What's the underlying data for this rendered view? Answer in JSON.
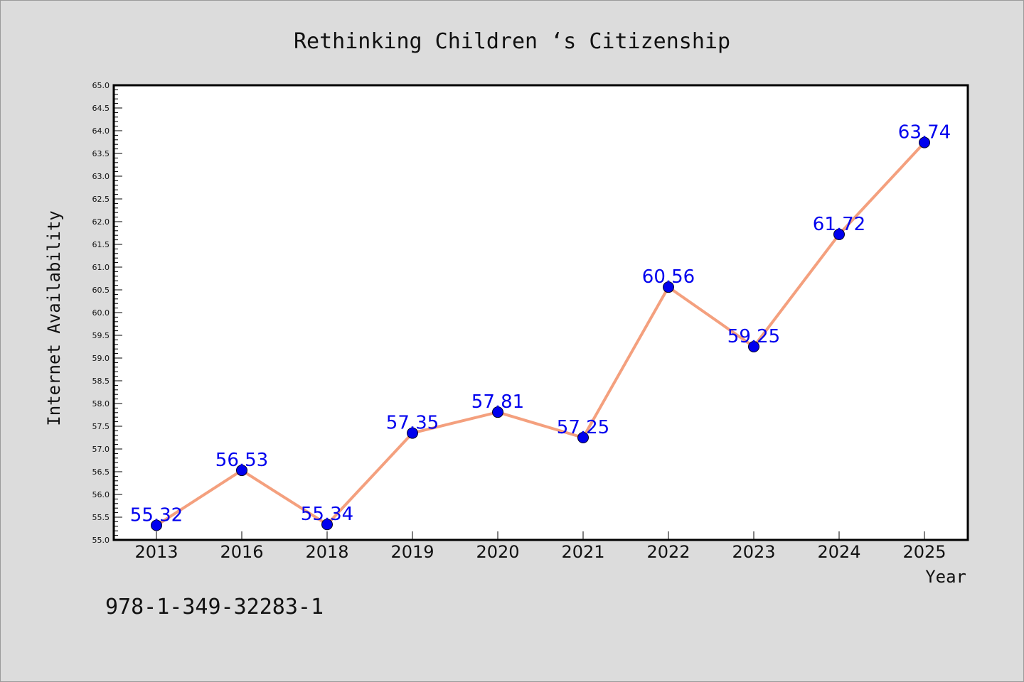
{
  "chart_data": {
    "type": "line",
    "title": "Rethinking Children ‘s Citizenship",
    "xlabel": "Year",
    "ylabel": "Internet Availability",
    "categories": [
      "2013",
      "2016",
      "2018",
      "2019",
      "2020",
      "2021",
      "2022",
      "2023",
      "2024",
      "2025"
    ],
    "series": [
      {
        "values": [
          55.32,
          56.53,
          55.34,
          57.35,
          57.81,
          57.25,
          60.56,
          59.25,
          61.72,
          63.74
        ],
        "labels": [
          "55.32",
          "56.53",
          "55.34",
          "57.35",
          "57.81",
          "57.25",
          "60.56",
          "59.25",
          "61.72",
          "63.74"
        ]
      }
    ],
    "ylim": [
      55.0,
      65.0
    ],
    "yticks": [
      "55.0",
      "55.5",
      "56.0",
      "56.5",
      "57.0",
      "57.5",
      "58.0",
      "58.5",
      "59.0",
      "59.5",
      "60.0",
      "60.5",
      "61.0",
      "61.5",
      "62.0",
      "62.5",
      "63.0",
      "63.5",
      "64.0",
      "64.5",
      "65.0"
    ],
    "grid": false,
    "colors": {
      "line": "#f4a07e",
      "marker": "#0000ee",
      "label": "#0000ee"
    }
  },
  "footer": {
    "isbn": "978-1-349-32283-1"
  }
}
